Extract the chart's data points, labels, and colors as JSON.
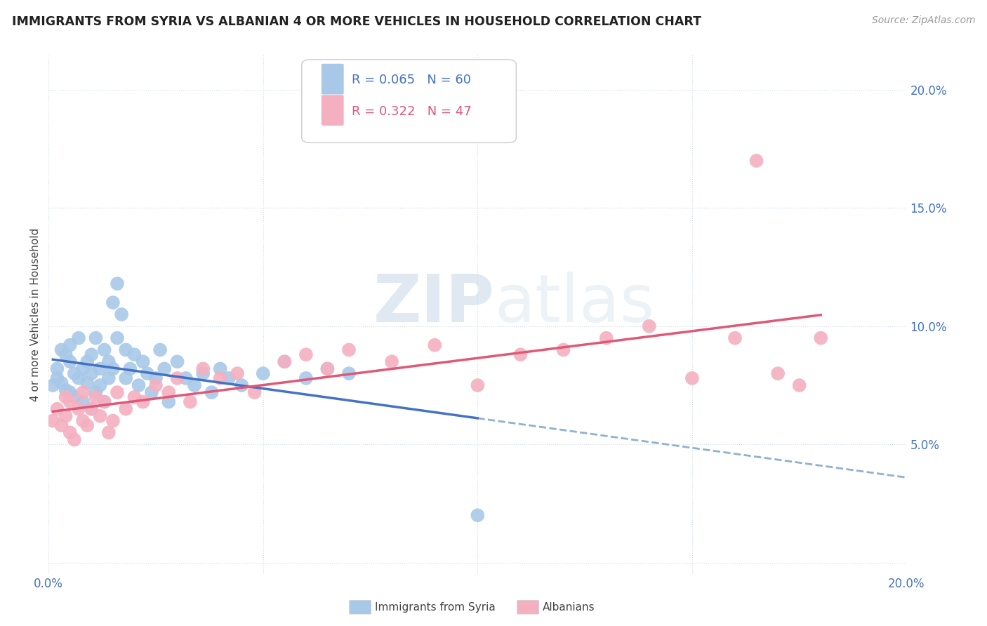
{
  "title": "IMMIGRANTS FROM SYRIA VS ALBANIAN 4 OR MORE VEHICLES IN HOUSEHOLD CORRELATION CHART",
  "source": "Source: ZipAtlas.com",
  "ylabel": "4 or more Vehicles in Household",
  "xlim": [
    0.0,
    0.2
  ],
  "ylim": [
    -0.005,
    0.215
  ],
  "syria_color": "#a8c8e8",
  "albania_color": "#f4b0c0",
  "syria_line_color": "#4472c4",
  "albania_line_color": "#e05878",
  "dashed_line_color": "#90b0d0",
  "R_syria": 0.065,
  "N_syria": 60,
  "R_albania": 0.322,
  "N_albania": 47,
  "watermark_zip": "ZIP",
  "watermark_atlas": "atlas",
  "syria_scatter_x": [
    0.001,
    0.002,
    0.002,
    0.003,
    0.003,
    0.004,
    0.004,
    0.005,
    0.005,
    0.005,
    0.006,
    0.006,
    0.007,
    0.007,
    0.008,
    0.008,
    0.009,
    0.009,
    0.01,
    0.01,
    0.01,
    0.011,
    0.011,
    0.012,
    0.012,
    0.013,
    0.013,
    0.014,
    0.014,
    0.015,
    0.015,
    0.016,
    0.016,
    0.017,
    0.018,
    0.018,
    0.019,
    0.02,
    0.021,
    0.022,
    0.023,
    0.024,
    0.025,
    0.026,
    0.027,
    0.028,
    0.03,
    0.032,
    0.034,
    0.036,
    0.038,
    0.04,
    0.042,
    0.045,
    0.05,
    0.055,
    0.06,
    0.065,
    0.07,
    0.1
  ],
  "syria_scatter_y": [
    0.075,
    0.078,
    0.082,
    0.076,
    0.09,
    0.073,
    0.088,
    0.072,
    0.085,
    0.092,
    0.07,
    0.08,
    0.095,
    0.078,
    0.082,
    0.068,
    0.076,
    0.085,
    0.065,
    0.08,
    0.088,
    0.072,
    0.095,
    0.075,
    0.082,
    0.068,
    0.09,
    0.078,
    0.085,
    0.11,
    0.082,
    0.118,
    0.095,
    0.105,
    0.078,
    0.09,
    0.082,
    0.088,
    0.075,
    0.085,
    0.08,
    0.072,
    0.078,
    0.09,
    0.082,
    0.068,
    0.085,
    0.078,
    0.075,
    0.08,
    0.072,
    0.082,
    0.078,
    0.075,
    0.08,
    0.085,
    0.078,
    0.082,
    0.08,
    0.02
  ],
  "albania_scatter_x": [
    0.001,
    0.002,
    0.003,
    0.004,
    0.004,
    0.005,
    0.005,
    0.006,
    0.007,
    0.008,
    0.008,
    0.009,
    0.01,
    0.011,
    0.012,
    0.013,
    0.014,
    0.015,
    0.016,
    0.018,
    0.02,
    0.022,
    0.025,
    0.028,
    0.03,
    0.033,
    0.036,
    0.04,
    0.044,
    0.048,
    0.055,
    0.06,
    0.065,
    0.07,
    0.08,
    0.09,
    0.1,
    0.11,
    0.12,
    0.13,
    0.14,
    0.15,
    0.16,
    0.165,
    0.17,
    0.175,
    0.18
  ],
  "albania_scatter_y": [
    0.06,
    0.065,
    0.058,
    0.062,
    0.07,
    0.055,
    0.068,
    0.052,
    0.065,
    0.06,
    0.072,
    0.058,
    0.065,
    0.07,
    0.062,
    0.068,
    0.055,
    0.06,
    0.072,
    0.065,
    0.07,
    0.068,
    0.075,
    0.072,
    0.078,
    0.068,
    0.082,
    0.078,
    0.08,
    0.072,
    0.085,
    0.088,
    0.082,
    0.09,
    0.085,
    0.092,
    0.075,
    0.088,
    0.09,
    0.095,
    0.1,
    0.078,
    0.095,
    0.17,
    0.08,
    0.075,
    0.095
  ]
}
